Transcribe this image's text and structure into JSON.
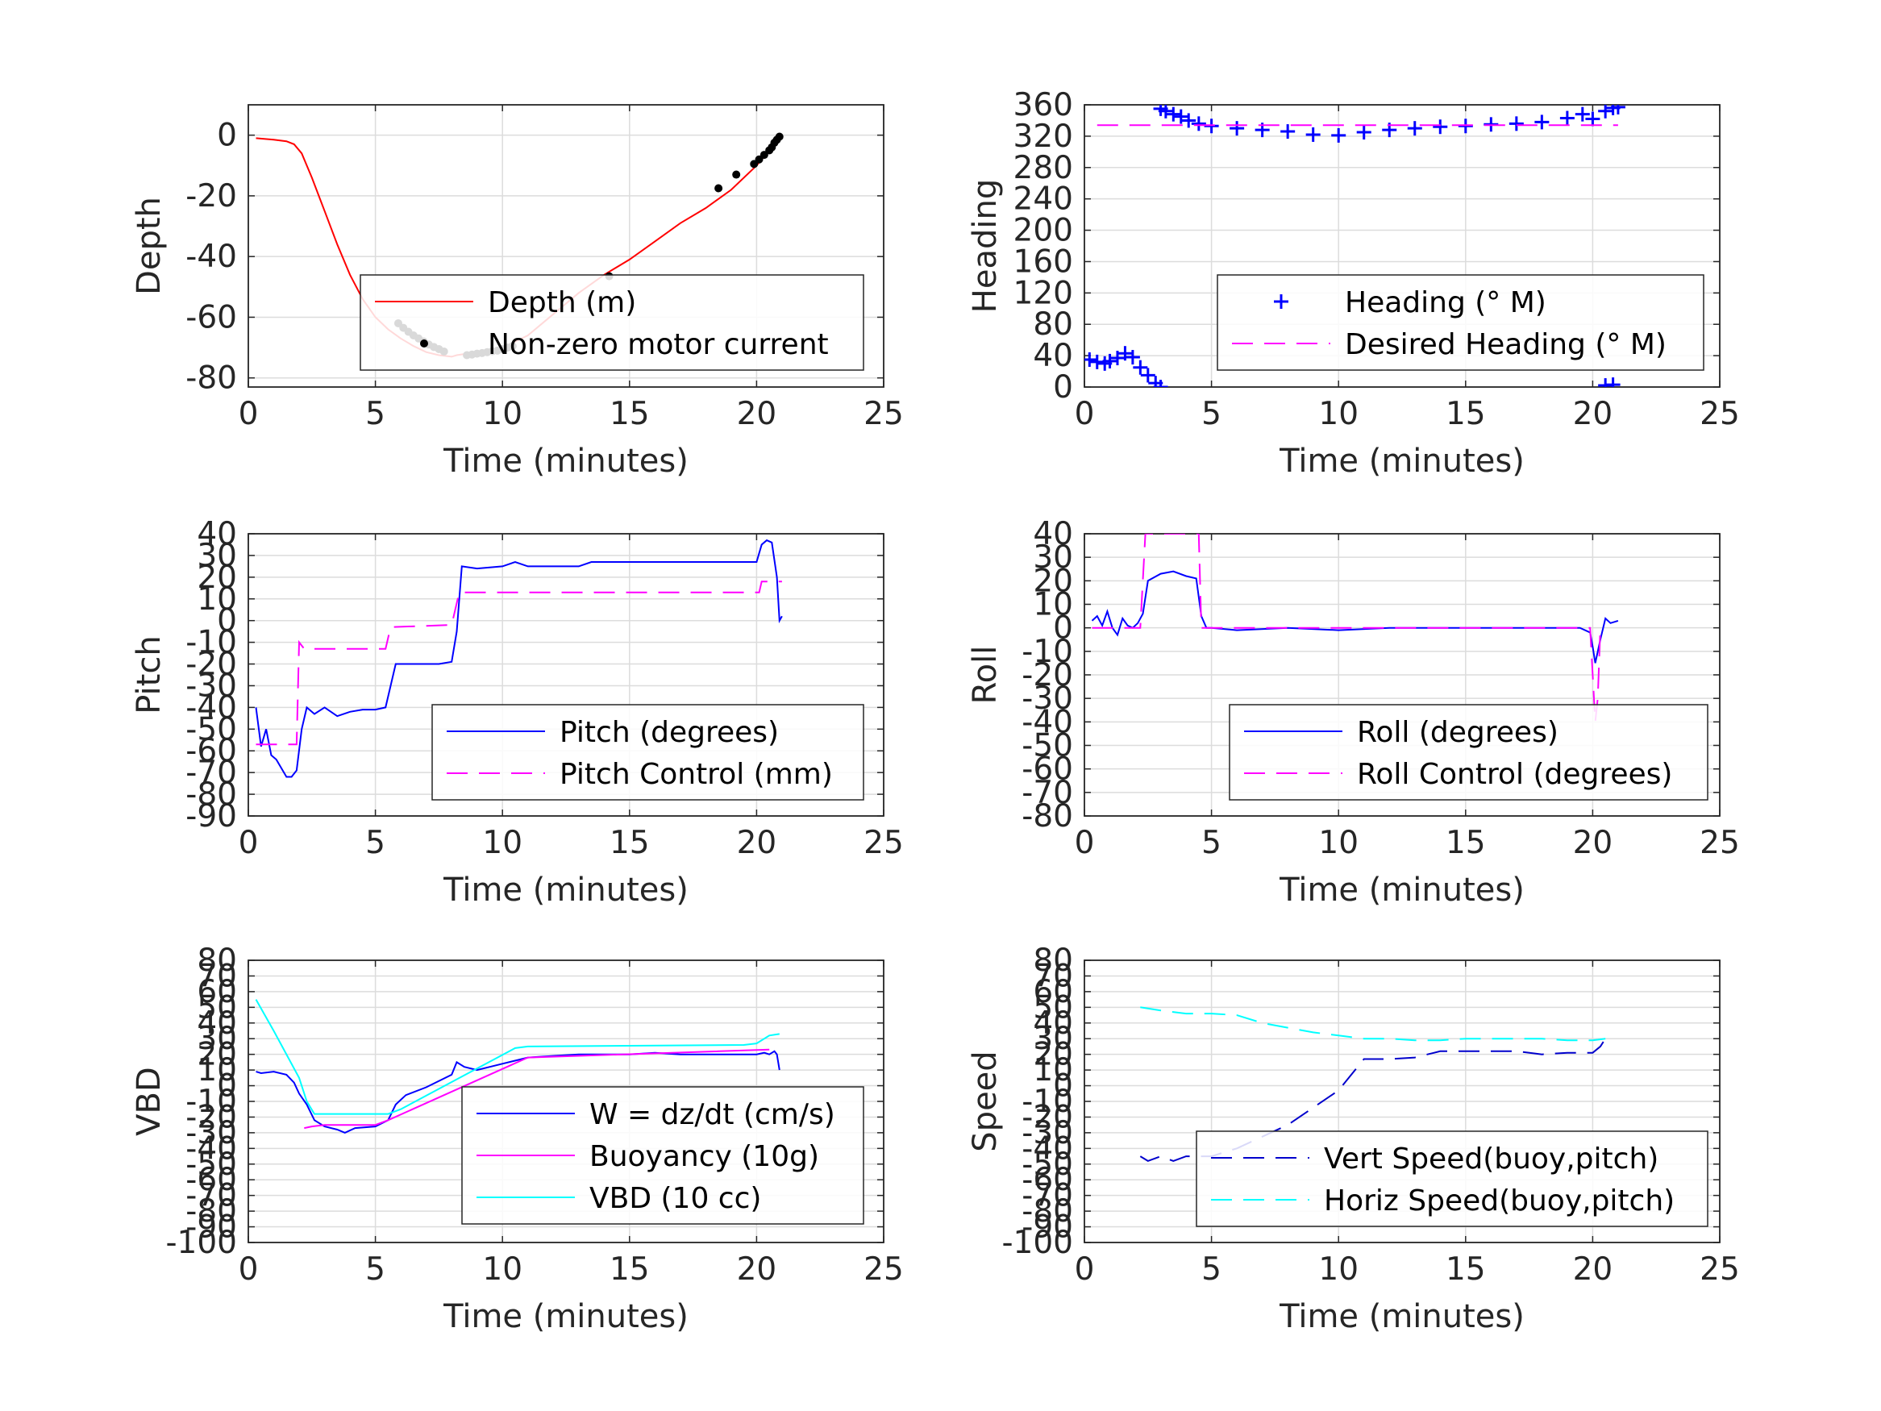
{
  "colors": {
    "depth": "#ff0000",
    "motor": "#000000",
    "blue": "#0000ff",
    "magenta": "#ff00ff",
    "cyan": "#00ffff",
    "dark_blue": "#0000cc"
  },
  "chart_data": [
    {
      "type": "line",
      "xlabel": "Time (minutes)",
      "ylabel": "Depth",
      "xlim": [
        0,
        25
      ],
      "ylim": [
        -83,
        10
      ],
      "xticks": [
        0,
        5,
        10,
        15,
        20,
        25
      ],
      "yticks": [
        0,
        -20,
        -40,
        -60,
        -80
      ],
      "grid": true,
      "legend_position": "bottom-right",
      "series": [
        {
          "name": "Depth (m)",
          "style": "line",
          "color": "#ff0000",
          "x": [
            0.3,
            1.0,
            1.5,
            1.8,
            2.1,
            2.5,
            3.0,
            3.5,
            4.0,
            4.5,
            5.0,
            5.5,
            6.0,
            6.5,
            7.0,
            7.5,
            8.0,
            8.2,
            9.0,
            10.0,
            11.0,
            12.0,
            13.0,
            14.0,
            15.0,
            16.0,
            17.0,
            18.0,
            19.0,
            20.0,
            20.6,
            20.9
          ],
          "y": [
            -1,
            -1.5,
            -2,
            -3,
            -6,
            -14,
            -25,
            -36,
            -46,
            -54,
            -60,
            -64,
            -67,
            -69.5,
            -71.5,
            -72.5,
            -73,
            -72.5,
            -71.5,
            -70,
            -66,
            -59,
            -52,
            -46,
            -41,
            -35,
            -29,
            -24,
            -18,
            -10,
            -4,
            -0.5
          ]
        },
        {
          "name": "Non-zero motor current",
          "style": "markers",
          "color": "#000000",
          "x": [
            5.9,
            6.1,
            6.3,
            6.5,
            6.7,
            6.9,
            7.1,
            7.3,
            7.5,
            7.7,
            8.6,
            8.8,
            9.0,
            9.2,
            9.4,
            9.6,
            9.8,
            10.0,
            10.2,
            10.4,
            14.2,
            18.5,
            19.2,
            19.9,
            20.1,
            20.3,
            20.5,
            20.6,
            20.7,
            20.8,
            20.9
          ],
          "y": [
            -62,
            -63.5,
            -64.8,
            -66,
            -67,
            -68,
            -69,
            -69.8,
            -70.5,
            -71.3,
            -72.5,
            -72.3,
            -72,
            -71.8,
            -71.5,
            -71.2,
            -71,
            -70.5,
            -70,
            -69.5,
            -46.5,
            -17.5,
            -13,
            -9.5,
            -8,
            -6.5,
            -5,
            -4,
            -2.5,
            -1.5,
            -0.5
          ]
        }
      ]
    },
    {
      "type": "scatter",
      "xlabel": "Time (minutes)",
      "ylabel": "Heading",
      "xlim": [
        0,
        25
      ],
      "ylim": [
        0,
        360
      ],
      "xticks": [
        0,
        5,
        10,
        15,
        20,
        25
      ],
      "yticks": [
        0,
        40,
        80,
        120,
        160,
        200,
        240,
        280,
        320,
        360
      ],
      "grid": true,
      "legend_position": "bottom-right",
      "series": [
        {
          "name": "Heading (° M)",
          "style": "plus",
          "color": "#0000ff",
          "x": [
            0.2,
            0.5,
            0.8,
            1.0,
            1.3,
            1.6,
            1.9,
            2.2,
            2.5,
            2.8,
            3.0,
            3.0,
            3.2,
            3.5,
            3.8,
            4.1,
            4.5,
            5.0,
            6.0,
            7.0,
            8.0,
            9.0,
            10.0,
            11.0,
            12.0,
            13.0,
            14.0,
            15.0,
            16.0,
            17.0,
            18.0,
            19.0,
            19.6,
            20.0,
            20.5,
            20.8,
            21.0,
            20.5,
            20.8
          ],
          "y": [
            35,
            32,
            30,
            33,
            37,
            43,
            38,
            25,
            15,
            5,
            0,
            355,
            352,
            348,
            345,
            340,
            336,
            333,
            330,
            328,
            326,
            322,
            321,
            325,
            328,
            330,
            332,
            333,
            335,
            336,
            338,
            343,
            348,
            342,
            352,
            356,
            357,
            2,
            3
          ]
        },
        {
          "name": "Desired Heading (° M)",
          "style": "dashed",
          "color": "#ff00ff",
          "x": [
            0.5,
            21.0
          ],
          "y": [
            334,
            334
          ]
        }
      ]
    },
    {
      "type": "line",
      "xlabel": "Time (minutes)",
      "ylabel": "Pitch",
      "xlim": [
        0,
        25
      ],
      "ylim": [
        -90,
        40
      ],
      "xticks": [
        0,
        5,
        10,
        15,
        20,
        25
      ],
      "yticks": [
        40,
        30,
        20,
        10,
        0,
        -10,
        -20,
        -30,
        -40,
        -50,
        -60,
        -70,
        -80,
        -90
      ],
      "grid": true,
      "legend_position": "bottom-right",
      "series": [
        {
          "name": "Pitch (degrees)",
          "style": "line",
          "color": "#0000ff",
          "x": [
            0.3,
            0.5,
            0.7,
            0.9,
            1.1,
            1.3,
            1.5,
            1.7,
            1.9,
            2.1,
            2.3,
            2.6,
            3.0,
            3.5,
            4.0,
            4.5,
            5.0,
            5.4,
            5.6,
            5.8,
            6.5,
            7.0,
            7.5,
            8.0,
            8.2,
            8.4,
            9.0,
            10.0,
            10.5,
            11.0,
            12.0,
            13.0,
            13.5,
            14.0,
            15.0,
            16.0,
            17.0,
            18.0,
            19.0,
            20.0,
            20.2,
            20.4,
            20.6,
            20.8,
            20.9,
            21.0
          ],
          "y": [
            -40,
            -58,
            -50,
            -62,
            -64,
            -68,
            -72,
            -72,
            -69,
            -50,
            -40,
            -43,
            -40,
            -44,
            -42,
            -41,
            -41,
            -40,
            -30,
            -20,
            -20,
            -20,
            -20,
            -19,
            -5,
            25,
            24,
            25,
            27,
            25,
            25,
            25,
            27,
            27,
            27,
            27,
            27,
            27,
            27,
            27,
            35,
            37,
            36,
            20,
            0,
            2
          ]
        },
        {
          "name": "Pitch Control (mm)",
          "style": "dashed",
          "color": "#ff00ff",
          "x": [
            0.3,
            1.9,
            2.0,
            2.2,
            5.4,
            5.6,
            8.0,
            8.3,
            20.1,
            20.2,
            21.0
          ],
          "y": [
            -57,
            -57,
            -10,
            -13,
            -13,
            -3,
            -2,
            13,
            13,
            18,
            18
          ]
        }
      ]
    },
    {
      "type": "line",
      "xlabel": "Time (minutes)",
      "ylabel": "Roll",
      "xlim": [
        0,
        25
      ],
      "ylim": [
        -80,
        40
      ],
      "xticks": [
        0,
        5,
        10,
        15,
        20,
        25
      ],
      "yticks": [
        40,
        30,
        20,
        10,
        0,
        -10,
        -20,
        -30,
        -40,
        -50,
        -60,
        -70,
        -80
      ],
      "grid": true,
      "legend_position": "bottom-right",
      "series": [
        {
          "name": "Roll (degrees)",
          "style": "line",
          "color": "#0000ff",
          "x": [
            0.3,
            0.5,
            0.7,
            0.9,
            1.1,
            1.3,
            1.5,
            1.7,
            1.9,
            2.1,
            2.3,
            2.5,
            3.0,
            3.5,
            4.0,
            4.4,
            4.6,
            4.8,
            5.0,
            6.0,
            8.0,
            10.0,
            12.0,
            14.0,
            16.0,
            18.0,
            19.5,
            19.9,
            20.0,
            20.1,
            20.3,
            20.5,
            20.7,
            21.0
          ],
          "y": [
            3,
            5,
            1,
            7,
            0,
            -3,
            4,
            1,
            0,
            2,
            6,
            20,
            23,
            24,
            22,
            21,
            5,
            0,
            0,
            -1,
            0,
            -1,
            0,
            0,
            0,
            0,
            0,
            -2,
            -8,
            -15,
            -5,
            4,
            2,
            3
          ]
        },
        {
          "name": "Roll Control (degrees)",
          "style": "dashed",
          "color": "#ff00ff",
          "x": [
            0.3,
            2.2,
            2.4,
            4.5,
            4.6,
            5.0,
            19.9,
            20.0,
            20.1,
            20.2,
            20.3
          ],
          "y": [
            0,
            0,
            40,
            40,
            0,
            0,
            0,
            -20,
            -40,
            -30,
            0
          ]
        }
      ]
    },
    {
      "type": "line",
      "xlabel": "Time (minutes)",
      "ylabel": "VBD",
      "xlim": [
        0,
        25
      ],
      "ylim": [
        -100,
        80
      ],
      "xticks": [
        0,
        5,
        10,
        15,
        20,
        25
      ],
      "yticks": [
        80,
        70,
        60,
        50,
        40,
        30,
        20,
        10,
        0,
        -10,
        -20,
        -30,
        -40,
        -50,
        -60,
        -70,
        -80,
        -90,
        -100
      ],
      "grid": true,
      "legend_position": "bottom-right",
      "series": [
        {
          "name": "W = dz/dt (cm/s)",
          "style": "line",
          "color": "#0000ff",
          "x": [
            0.3,
            0.5,
            1.0,
            1.5,
            1.8,
            2.0,
            2.3,
            2.6,
            3.0,
            3.5,
            3.8,
            4.2,
            5.0,
            5.5,
            5.8,
            6.2,
            7.0,
            8.0,
            8.2,
            8.5,
            9.0,
            10.0,
            11.0,
            12.0,
            13.0,
            14.0,
            15.0,
            16.0,
            17.0,
            18.0,
            19.0,
            20.0,
            20.3,
            20.5,
            20.7,
            20.8,
            20.9
          ],
          "y": [
            9,
            8,
            9,
            7,
            2,
            -5,
            -12,
            -22,
            -26,
            -28,
            -30,
            -27,
            -26,
            -22,
            -12,
            -6,
            -1,
            7,
            15,
            12,
            10,
            14,
            18,
            19,
            20,
            20,
            20,
            21,
            20,
            20,
            20,
            20,
            21,
            20,
            22,
            20,
            10
          ]
        },
        {
          "name": "Buoyancy (10g)",
          "style": "line",
          "color": "#ff00ff",
          "x": [
            2.2,
            2.5,
            3.0,
            5.0,
            5.5,
            11.0,
            20.5
          ],
          "y": [
            -27,
            -26,
            -25,
            -25,
            -22,
            18,
            23
          ]
        },
        {
          "name": "VBD (10 cc)",
          "style": "line",
          "color": "#00ffff",
          "x": [
            0.3,
            1.0,
            2.0,
            2.3,
            2.6,
            3.0,
            5.5,
            6.0,
            10.5,
            11.0,
            19.5,
            20.0,
            20.5,
            20.9
          ],
          "y": [
            55,
            35,
            5,
            -10,
            -18,
            -18,
            -18,
            -15,
            24,
            25,
            26,
            27,
            32,
            33
          ]
        }
      ]
    },
    {
      "type": "line",
      "xlabel": "Time (minutes)",
      "ylabel": "Speed",
      "xlim": [
        0,
        25
      ],
      "ylim": [
        -100,
        80
      ],
      "xticks": [
        0,
        5,
        10,
        15,
        20,
        25
      ],
      "yticks": [
        80,
        70,
        60,
        50,
        40,
        30,
        20,
        10,
        0,
        -10,
        -20,
        -30,
        -40,
        -50,
        -60,
        -70,
        -80,
        -90,
        -100
      ],
      "grid": true,
      "legend_position": "bottom-right",
      "series": [
        {
          "name": "Vert Speed(buoy,pitch)",
          "style": "dashed",
          "color": "#0000cc",
          "x": [
            2.2,
            2.5,
            3.0,
            3.5,
            4.0,
            5.0,
            6.0,
            8.0,
            10.0,
            11.0,
            12.0,
            13.0,
            14.0,
            15.0,
            16.0,
            17.0,
            18.0,
            19.0,
            20.0,
            20.3,
            20.5
          ],
          "y": [
            -45,
            -48,
            -45,
            -48,
            -45,
            -45,
            -40,
            -25,
            -3,
            17,
            17,
            18,
            22,
            22,
            22,
            22,
            20,
            21,
            21,
            25,
            30
          ]
        },
        {
          "name": "Horiz Speed(buoy,pitch)",
          "style": "dashed",
          "color": "#00ffff",
          "x": [
            2.2,
            3.0,
            4.0,
            5.0,
            6.0,
            7.0,
            8.0,
            9.0,
            10.0,
            11.0,
            12.0,
            13.0,
            14.0,
            15.0,
            16.0,
            17.0,
            18.0,
            19.0,
            20.0,
            20.5
          ],
          "y": [
            50,
            48,
            46,
            46,
            45,
            40,
            37,
            34,
            32,
            30,
            30,
            29,
            29,
            30,
            30,
            30,
            30,
            29,
            29,
            30
          ]
        }
      ]
    }
  ]
}
